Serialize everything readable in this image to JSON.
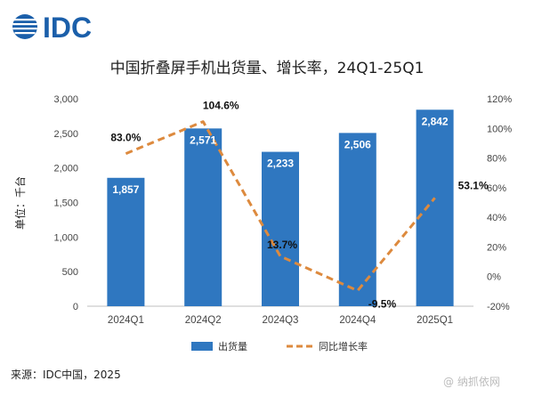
{
  "logo": {
    "text": "IDC",
    "icon": "idc-globe-icon",
    "color": "#1b5faa"
  },
  "chart_data": {
    "type": "bar",
    "title": "中国折叠屏手机出货量、增长率，24Q1-25Q1",
    "ylabel": "单位：千台",
    "categories": [
      "2024Q1",
      "2024Q2",
      "2024Q3",
      "2024Q4",
      "2025Q1"
    ],
    "ylim": [
      0,
      3000
    ],
    "yticks": [
      "0",
      "500",
      "1,000",
      "1,500",
      "2,000",
      "2,500",
      "3,000"
    ],
    "y2lim": [
      -20,
      120
    ],
    "y2ticks": [
      "-20%",
      "0%",
      "20%",
      "40%",
      "60%",
      "80%",
      "100%",
      "120%"
    ],
    "series": [
      {
        "name": "出货量",
        "type": "bar",
        "axis": "left",
        "color": "#2f77c0",
        "values": [
          1857,
          2571,
          2233,
          2506,
          2842
        ],
        "labels": [
          "1,857",
          "2,571",
          "2,233",
          "2,506",
          "2,842"
        ]
      },
      {
        "name": "同比增长率",
        "type": "line",
        "axis": "right",
        "style": "dashed",
        "color": "#dd8a3e",
        "values": [
          83.0,
          104.6,
          13.7,
          -9.5,
          53.1
        ],
        "labels": [
          "83.0%",
          "104.6%",
          "13.7%",
          "-9.5%",
          "53.1%"
        ]
      }
    ],
    "grid": false,
    "legend": "bottom"
  },
  "source": "来源：IDC中国，2025",
  "watermark": "@ 纳抓依网"
}
